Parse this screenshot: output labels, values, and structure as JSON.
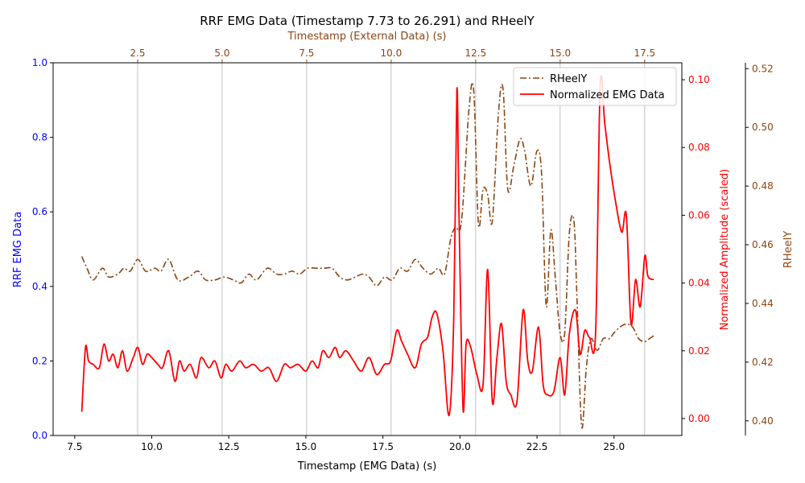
{
  "chart_data": {
    "type": "line",
    "title": "RRF EMG Data (Timestamp 7.73 to 26.291) and RHeelY",
    "xlabel": "Timestamp (EMG Data) (s)",
    "x_range": [
      6.8,
      27.2
    ],
    "x_ticks": [
      "7.5",
      "10.0",
      "12.5",
      "15.0",
      "17.5",
      "20.0",
      "22.5",
      "25.0"
    ],
    "top_axis": {
      "label": "Timestamp (External Data) (s)",
      "range": [
        0,
        18.6
      ],
      "ticks": [
        "2.5",
        "5.0",
        "7.5",
        "10.0",
        "12.5",
        "15.0",
        "17.5"
      ],
      "color": "#8B4513"
    },
    "left_axis": {
      "label": "RRF EMG Data",
      "range": [
        0,
        1
      ],
      "ticks": [
        "0.0",
        "0.2",
        "0.4",
        "0.6",
        "0.8",
        "1.0"
      ],
      "color": "#0000ff"
    },
    "right_axis_1": {
      "label": "Normalized Amplitude (scaled)",
      "range": [
        -0.005,
        0.105
      ],
      "ticks": [
        "0.00",
        "0.02",
        "0.04",
        "0.06",
        "0.08",
        "0.10"
      ],
      "color": "#ff0000"
    },
    "right_axis_2": {
      "label": "RHeelY",
      "range": [
        0.395,
        0.522
      ],
      "ticks": [
        "0.40",
        "0.42",
        "0.44",
        "0.46",
        "0.48",
        "0.50",
        "0.52"
      ],
      "color": "#8B4513"
    },
    "grid": "vertical lines at top-axis ticks",
    "legend": {
      "placement": "top-right",
      "entries": [
        "RHeelY",
        "Normalized EMG Data"
      ]
    },
    "series": [
      {
        "name": "Normalized EMG Data",
        "axis": "right_axis_1",
        "color": "#ff0000",
        "style": "solid",
        "x": [
          7.73,
          7.85,
          7.95,
          8.1,
          8.3,
          8.45,
          8.6,
          8.75,
          8.9,
          9.05,
          9.2,
          9.4,
          9.55,
          9.7,
          9.85,
          10.0,
          10.2,
          10.35,
          10.55,
          10.75,
          10.9,
          11.05,
          11.25,
          11.45,
          11.6,
          11.85,
          12.05,
          12.25,
          12.4,
          12.6,
          12.85,
          13.05,
          13.3,
          13.55,
          13.8,
          14.05,
          14.3,
          14.5,
          14.75,
          15.0,
          15.2,
          15.4,
          15.55,
          15.75,
          15.95,
          16.1,
          16.3,
          16.55,
          16.8,
          17.05,
          17.3,
          17.55,
          17.75,
          17.95,
          18.1,
          18.3,
          18.55,
          18.75,
          18.95,
          19.1,
          19.25,
          19.45,
          19.65,
          19.8,
          19.9,
          19.97,
          20.1,
          20.2,
          20.35,
          20.55,
          20.75,
          20.9,
          21.05,
          21.2,
          21.35,
          21.5,
          21.65,
          21.85,
          22.05,
          22.2,
          22.35,
          22.55,
          22.7,
          22.85,
          23.05,
          23.25,
          23.4,
          23.55,
          23.75,
          23.9,
          24.05,
          24.2,
          24.4,
          24.55,
          24.7,
          24.85,
          25.05,
          25.25,
          25.4,
          25.55,
          25.7,
          25.85,
          26.0,
          26.1,
          26.29
        ],
        "values": [
          0.002,
          0.021,
          0.017,
          0.016,
          0.015,
          0.022,
          0.017,
          0.019,
          0.015,
          0.02,
          0.014,
          0.018,
          0.021,
          0.016,
          0.019,
          0.018,
          0.016,
          0.015,
          0.02,
          0.011,
          0.017,
          0.014,
          0.016,
          0.012,
          0.018,
          0.015,
          0.017,
          0.012,
          0.016,
          0.014,
          0.017,
          0.015,
          0.016,
          0.014,
          0.015,
          0.011,
          0.016,
          0.015,
          0.016,
          0.014,
          0.017,
          0.015,
          0.02,
          0.018,
          0.021,
          0.018,
          0.02,
          0.017,
          0.014,
          0.018,
          0.013,
          0.016,
          0.017,
          0.026,
          0.023,
          0.019,
          0.015,
          0.022,
          0.024,
          0.03,
          0.031,
          0.02,
          0.001,
          0.03,
          0.097,
          0.06,
          0.003,
          0.022,
          0.021,
          0.013,
          0.01,
          0.044,
          0.005,
          0.018,
          0.028,
          0.011,
          0.007,
          0.005,
          0.032,
          0.017,
          0.014,
          0.027,
          0.01,
          0.007,
          0.008,
          0.018,
          0.007,
          0.025,
          0.032,
          0.019,
          0.026,
          0.024,
          0.025,
          0.098,
          0.087,
          0.076,
          0.064,
          0.055,
          0.06,
          0.028,
          0.041,
          0.033,
          0.048,
          0.042,
          0.041
        ]
      },
      {
        "name": "RHeelY",
        "axis": "right_axis_2",
        "color": "#8B4513",
        "style": "dash-dot",
        "x": [
          7.73,
          7.9,
          8.1,
          8.4,
          8.6,
          8.9,
          9.1,
          9.3,
          9.55,
          9.8,
          10.1,
          10.3,
          10.55,
          10.85,
          11.2,
          11.5,
          11.75,
          12.05,
          12.35,
          12.65,
          12.9,
          13.15,
          13.4,
          13.75,
          14.05,
          14.3,
          14.55,
          14.8,
          15.05,
          15.35,
          15.6,
          15.85,
          16.1,
          16.35,
          16.6,
          16.85,
          17.05,
          17.3,
          17.55,
          17.8,
          18.05,
          18.3,
          18.55,
          18.8,
          19.05,
          19.3,
          19.5,
          19.7,
          19.85,
          20.05,
          20.3,
          20.45,
          20.6,
          20.75,
          20.9,
          21.05,
          21.25,
          21.4,
          21.55,
          21.75,
          21.95,
          22.1,
          22.3,
          22.5,
          22.65,
          22.8,
          22.95,
          23.1,
          23.25,
          23.4,
          23.55,
          23.7,
          23.8,
          23.95,
          24.1,
          24.25,
          24.45,
          24.65,
          24.85,
          25.0,
          25.2,
          25.4,
          25.6,
          25.8,
          26.0,
          26.15,
          26.29
        ],
        "values": [
          0.456,
          0.452,
          0.448,
          0.452,
          0.449,
          0.45,
          0.452,
          0.451,
          0.455,
          0.451,
          0.452,
          0.451,
          0.455,
          0.448,
          0.449,
          0.451,
          0.448,
          0.448,
          0.449,
          0.448,
          0.447,
          0.45,
          0.448,
          0.452,
          0.45,
          0.45,
          0.451,
          0.45,
          0.452,
          0.452,
          0.452,
          0.452,
          0.449,
          0.448,
          0.449,
          0.45,
          0.449,
          0.446,
          0.449,
          0.448,
          0.452,
          0.451,
          0.455,
          0.452,
          0.45,
          0.452,
          0.45,
          0.462,
          0.466,
          0.468,
          0.507,
          0.512,
          0.467,
          0.479,
          0.477,
          0.468,
          0.505,
          0.513,
          0.479,
          0.487,
          0.496,
          0.492,
          0.48,
          0.492,
          0.484,
          0.439,
          0.465,
          0.448,
          0.43,
          0.43,
          0.464,
          0.468,
          0.441,
          0.398,
          0.418,
          0.428,
          0.424,
          0.428,
          0.428,
          0.43,
          0.432,
          0.433,
          0.432,
          0.428,
          0.427,
          0.428,
          0.429
        ]
      }
    ]
  }
}
